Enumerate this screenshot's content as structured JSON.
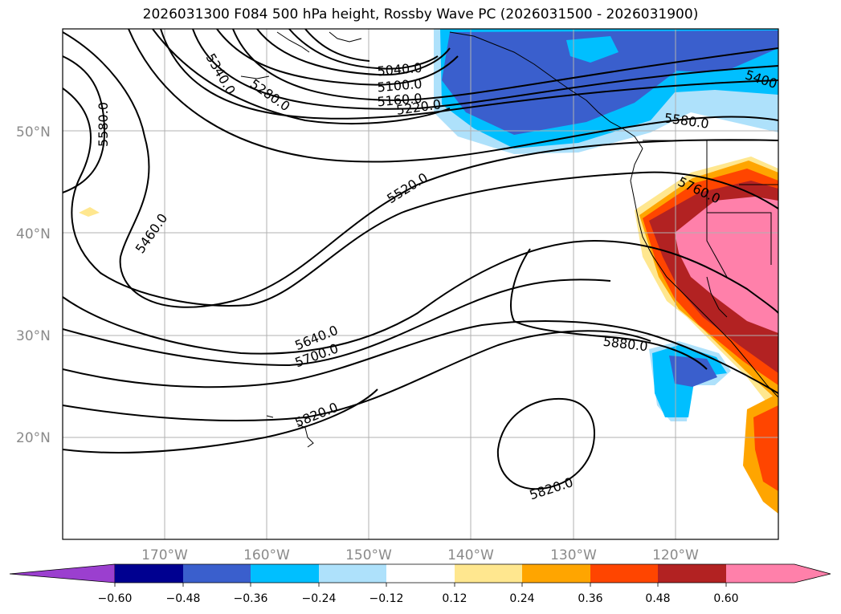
{
  "title": "2026031300 F084 500 hPa height, Rossby Wave PC (2026031500 - 2026031900)",
  "contour_labels": [
    "5040.0",
    "5100.0",
    "5160.0",
    "5220.0",
    "5280.0",
    "5340.0",
    "5400",
    "5460.0",
    "5520.0",
    "5580.0",
    "5580.0",
    "5640.0",
    "5700.0",
    "5760.0",
    "5820.0",
    "5820.0",
    "5880.0"
  ],
  "lat_labels": [
    "50°N",
    "40°N",
    "30°N",
    "20°N"
  ],
  "lon_labels": [
    "170°W",
    "160°W",
    "150°W",
    "140°W",
    "130°W",
    "120°W"
  ],
  "colorbar": {
    "ticks": [
      "−0.60",
      "−0.48",
      "−0.36",
      "−0.24",
      "−0.12",
      "0.12",
      "0.24",
      "0.36",
      "0.48",
      "0.60"
    ],
    "colors": [
      "#9b3fcf",
      "#000090",
      "#3a5fcd",
      "#00bfff",
      "#aee1fb",
      "#ffffff",
      "#ffe78f",
      "#ffa500",
      "#ff4500",
      "#b22222",
      "#ff80aa"
    ]
  }
}
